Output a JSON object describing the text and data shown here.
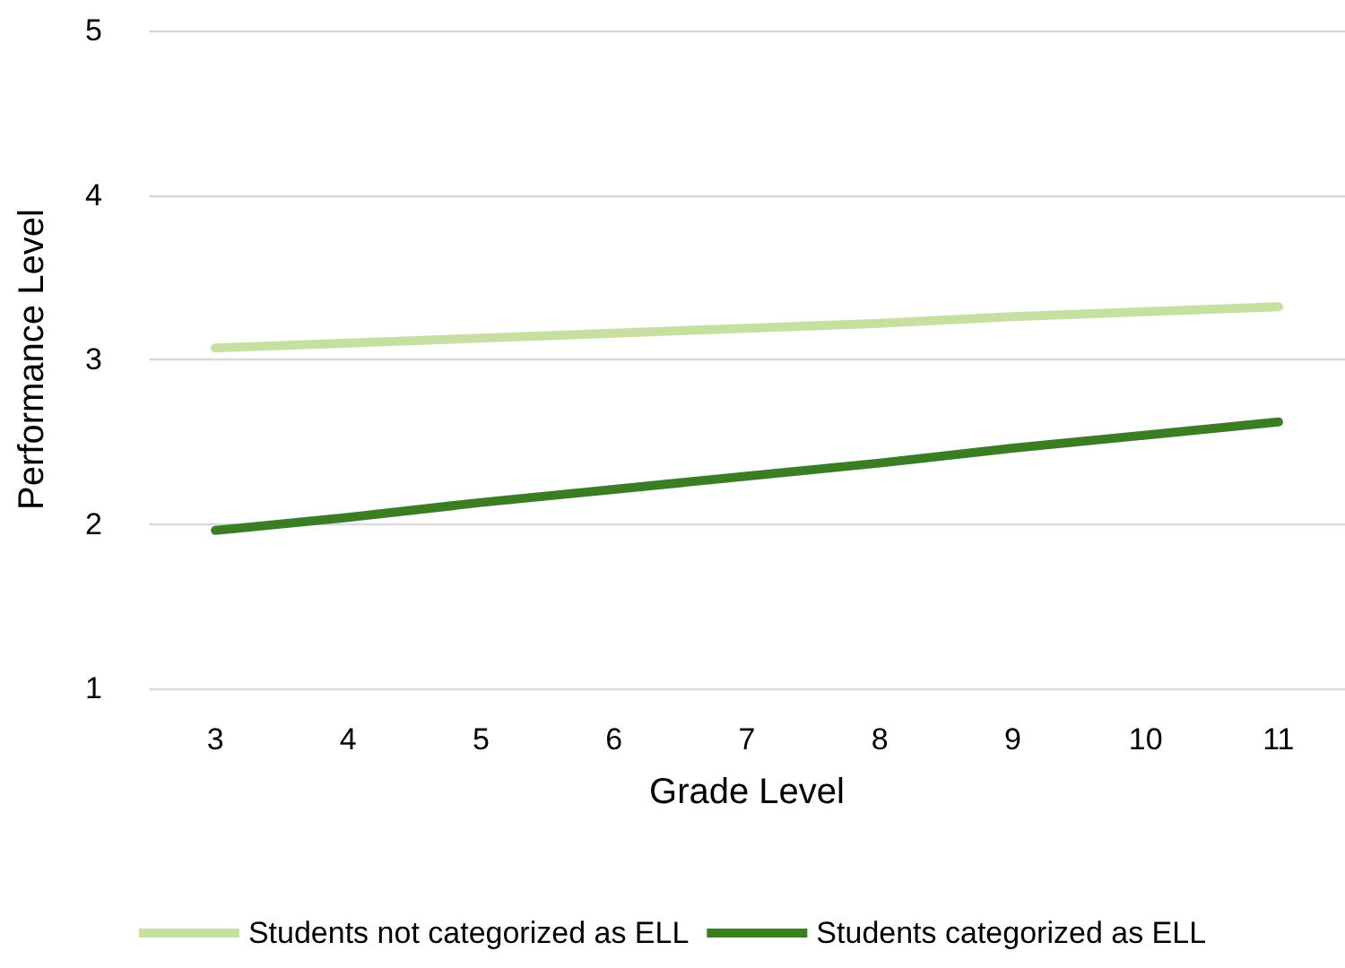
{
  "chart_data": {
    "type": "line",
    "xlabel": "Grade Level",
    "ylabel": "Performance Level",
    "categories": [
      "3",
      "4",
      "5",
      "6",
      "7",
      "8",
      "9",
      "10",
      "11"
    ],
    "series": [
      {
        "name": "Students not categorized as ELL",
        "color": "#c5e0a0",
        "values": [
          3.07,
          3.1,
          3.13,
          3.16,
          3.19,
          3.22,
          3.26,
          3.29,
          3.32
        ]
      },
      {
        "name": "Students categorized as ELL",
        "color": "#3b7d23",
        "values": [
          1.96,
          2.04,
          2.13,
          2.21,
          2.29,
          2.37,
          2.46,
          2.54,
          2.62
        ]
      }
    ],
    "ylim": [
      1,
      5
    ],
    "yticks": [
      1,
      2,
      3,
      4,
      5
    ],
    "grid": "y",
    "legend": "bottom",
    "marker": "none",
    "line_style": "solid"
  }
}
